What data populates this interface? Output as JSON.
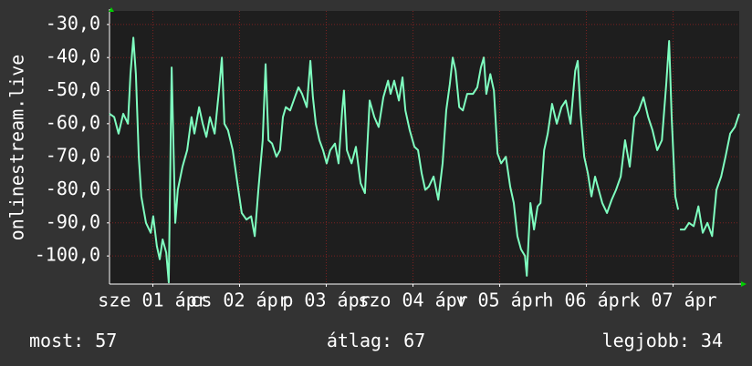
{
  "chart_data": {
    "type": "line",
    "y_label": "onlinestream.live",
    "x": [
      0,
      1.3,
      2.5,
      3.8,
      5.1,
      5.8,
      6.6,
      7.3,
      8.1,
      8.8,
      10.1,
      11.4,
      12.1,
      13.1,
      13.9,
      14.7,
      15.7,
      16.4,
      17.2,
      18.2,
      18.9,
      20.2,
      21.5,
      22.7,
      23.5,
      24.8,
      25.8,
      26.8,
      27.8,
      29.1,
      30.3,
      31.1,
      31.8,
      32.8,
      34.1,
      35.4,
      36.6,
      37.9,
      39.2,
      40.2,
      41.2,
      42.4,
      43.2,
      44.0,
      45.0,
      46.2,
      47.2,
      48.0,
      48.8,
      50.0,
      51.3,
      52.3,
      53.3,
      54.6,
      55.6,
      56.3,
      57.1,
      58.1,
      59.1,
      60.1,
      61.1,
      62.4,
      63.4,
      64.4,
      64.9,
      65.7,
      67.0,
      68.2,
      69.5,
      70.7,
      72.0,
      73.3,
      74.5,
      75.8,
      77.1,
      77.8,
      78.8,
      80.1,
      81.1,
      81.9,
      83.1,
      84.4,
      85.4,
      86.4,
      87.4,
      88.4,
      89.7,
      91.0,
      92.2,
      93.2,
      94.2,
      95.0,
      95.8,
      96.8,
      97.8,
      99.0,
      100.6,
      101.8,
      102.8,
      103.6,
      104.3,
      105.4,
      106.4,
      107.4,
      108.4,
      109.7,
      110.9,
      111.9,
      112.9,
      113.9,
      115.0,
      115.5,
      116.5,
      117.5,
      118.5,
      119.3,
      120.3,
      121.3,
      122.5,
      123.8,
      125.1,
      126.3,
      127.6,
      128.9,
      129.6,
      130.4,
      131.4,
      132.4,
      133.4,
      134.4,
      135.4,
      136.4,
      137.7,
      139.0,
      140.2,
      141.5,
      142.7,
      144.0,
      145.3,
      146.5,
      147.8,
      149.1,
      150.3,
      151.6,
      152.9,
      154.1,
      154.9,
      155.6,
      156.6,
      157.4,
      157.7,
      157.9,
      159.2,
      160.4,
      161.7,
      163.0,
      164.2,
      165.5,
      166.8,
      168.0,
      169.3,
      170.5,
      171.8,
      173.1,
      174.3
    ],
    "series": [
      {
        "color": "#7fffc0",
        "values": [
          -57,
          -58,
          -63,
          -57,
          -60,
          -45,
          -34,
          -45,
          -70,
          -82,
          -90,
          -93,
          -88,
          -97,
          -101,
          -95,
          -99,
          -108,
          -43,
          -90,
          -80,
          -73,
          -68,
          -58,
          -63,
          -55,
          -60,
          -64,
          -58,
          -63,
          -50,
          -40,
          -60,
          -62,
          -68,
          -78,
          -87,
          -89,
          -88,
          -94,
          -80,
          -65,
          -42,
          -65,
          -66,
          -70,
          -68,
          -58,
          -55,
          -56,
          -52,
          -49,
          -51,
          -55,
          -41,
          -52,
          -60,
          -65,
          -68,
          -72,
          -68,
          -66,
          -72,
          -56,
          -50,
          -68,
          -72,
          -67,
          -78,
          -81,
          -53,
          -58,
          -61,
          -52,
          -47,
          -51,
          -47,
          -53,
          -46,
          -56,
          -62,
          -67,
          -68,
          -75,
          -80,
          -79,
          -76,
          -83,
          -72,
          -56,
          -48,
          -40,
          -44,
          -55,
          -56,
          -51,
          -51,
          -49,
          -43,
          -40,
          -51,
          -45,
          -50,
          -69,
          -72,
          -70,
          -79,
          -84,
          -94,
          -98,
          -100,
          -106,
          -84,
          -92,
          -85,
          -84,
          -68,
          -63,
          -54,
          -60,
          -55,
          -53,
          -60,
          -44,
          -41,
          -57,
          -70,
          -75,
          -82,
          -76,
          -80,
          -84,
          -87,
          -83,
          -80,
          -76,
          -65,
          -73,
          -58,
          -56,
          -52,
          -58,
          -62,
          -68,
          -65,
          -48,
          -35,
          -58,
          -82,
          -86,
          null,
          -92,
          -92,
          -90,
          -91,
          -85,
          -93,
          -90,
          -94,
          -80,
          -76,
          -70,
          -63,
          -61,
          -57
        ]
      }
    ],
    "xlim": [
      0,
      174.3
    ],
    "xticks": [
      {
        "value": 12,
        "label": "sze 01 ápr"
      },
      {
        "value": 36,
        "label": "cs 02 ápr"
      },
      {
        "value": 60,
        "label": "p 03 ápr"
      },
      {
        "value": 84,
        "label": "szo 04 ápr"
      },
      {
        "value": 108,
        "label": "v 05 ápr"
      },
      {
        "value": 132,
        "label": "h 06 ápr"
      },
      {
        "value": 156,
        "label": "k 07 ápr"
      }
    ],
    "ylim": [
      -108.5,
      -25.9
    ],
    "yticks": [
      {
        "value": -30,
        "label": "-30,0"
      },
      {
        "value": -40,
        "label": "-40,0"
      },
      {
        "value": -50,
        "label": "-50,0"
      },
      {
        "value": -60,
        "label": "-60,0"
      },
      {
        "value": -70,
        "label": "-70,0"
      },
      {
        "value": -80,
        "label": "-80,0"
      },
      {
        "value": -90,
        "label": "-90,0"
      },
      {
        "value": -100,
        "label": "-100,0"
      }
    ],
    "grid": true,
    "stats": [
      {
        "label": "most:",
        "value": 57
      },
      {
        "label": "átlag:",
        "value": 67
      },
      {
        "label": "legjobb:",
        "value": 34
      }
    ]
  }
}
